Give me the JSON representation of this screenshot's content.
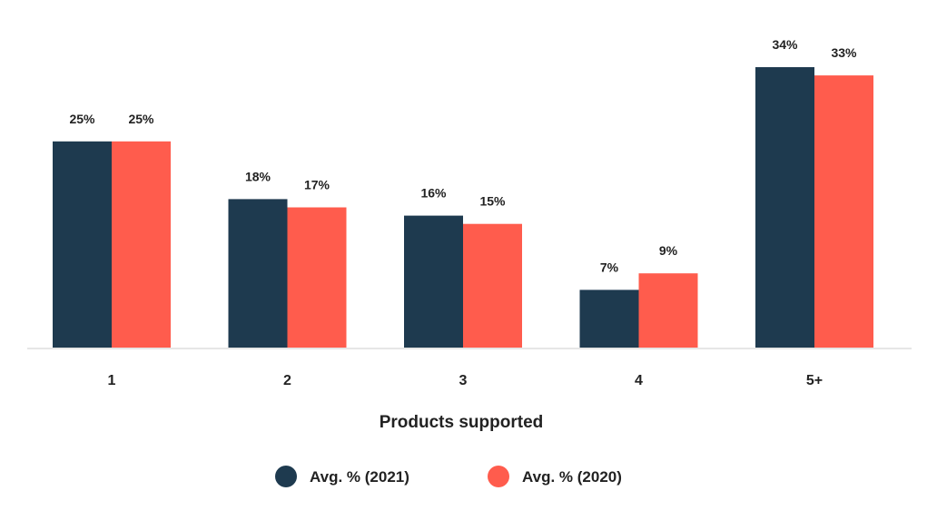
{
  "chart_data": {
    "type": "bar",
    "categories": [
      "1",
      "2",
      "3",
      "4",
      "5+"
    ],
    "series": [
      {
        "name": "Avg. % (2021)",
        "values": [
          25,
          18,
          16,
          7,
          34
        ],
        "labels": [
          "25%",
          "18%",
          "16%",
          "7%",
          "34%"
        ],
        "color": "#1e3a4f"
      },
      {
        "name": "Avg. % (2020)",
        "values": [
          25,
          17,
          15,
          9,
          33
        ],
        "labels": [
          "25%",
          "17%",
          "15%",
          "9%",
          "33%"
        ],
        "color": "#ff5c4d"
      }
    ],
    "xlabel": "Products supported",
    "ylabel": "",
    "ylim": [
      0,
      34
    ],
    "grid": false,
    "legend_position": "bottom-center",
    "axis_line_color": "#e6e6e6"
  }
}
